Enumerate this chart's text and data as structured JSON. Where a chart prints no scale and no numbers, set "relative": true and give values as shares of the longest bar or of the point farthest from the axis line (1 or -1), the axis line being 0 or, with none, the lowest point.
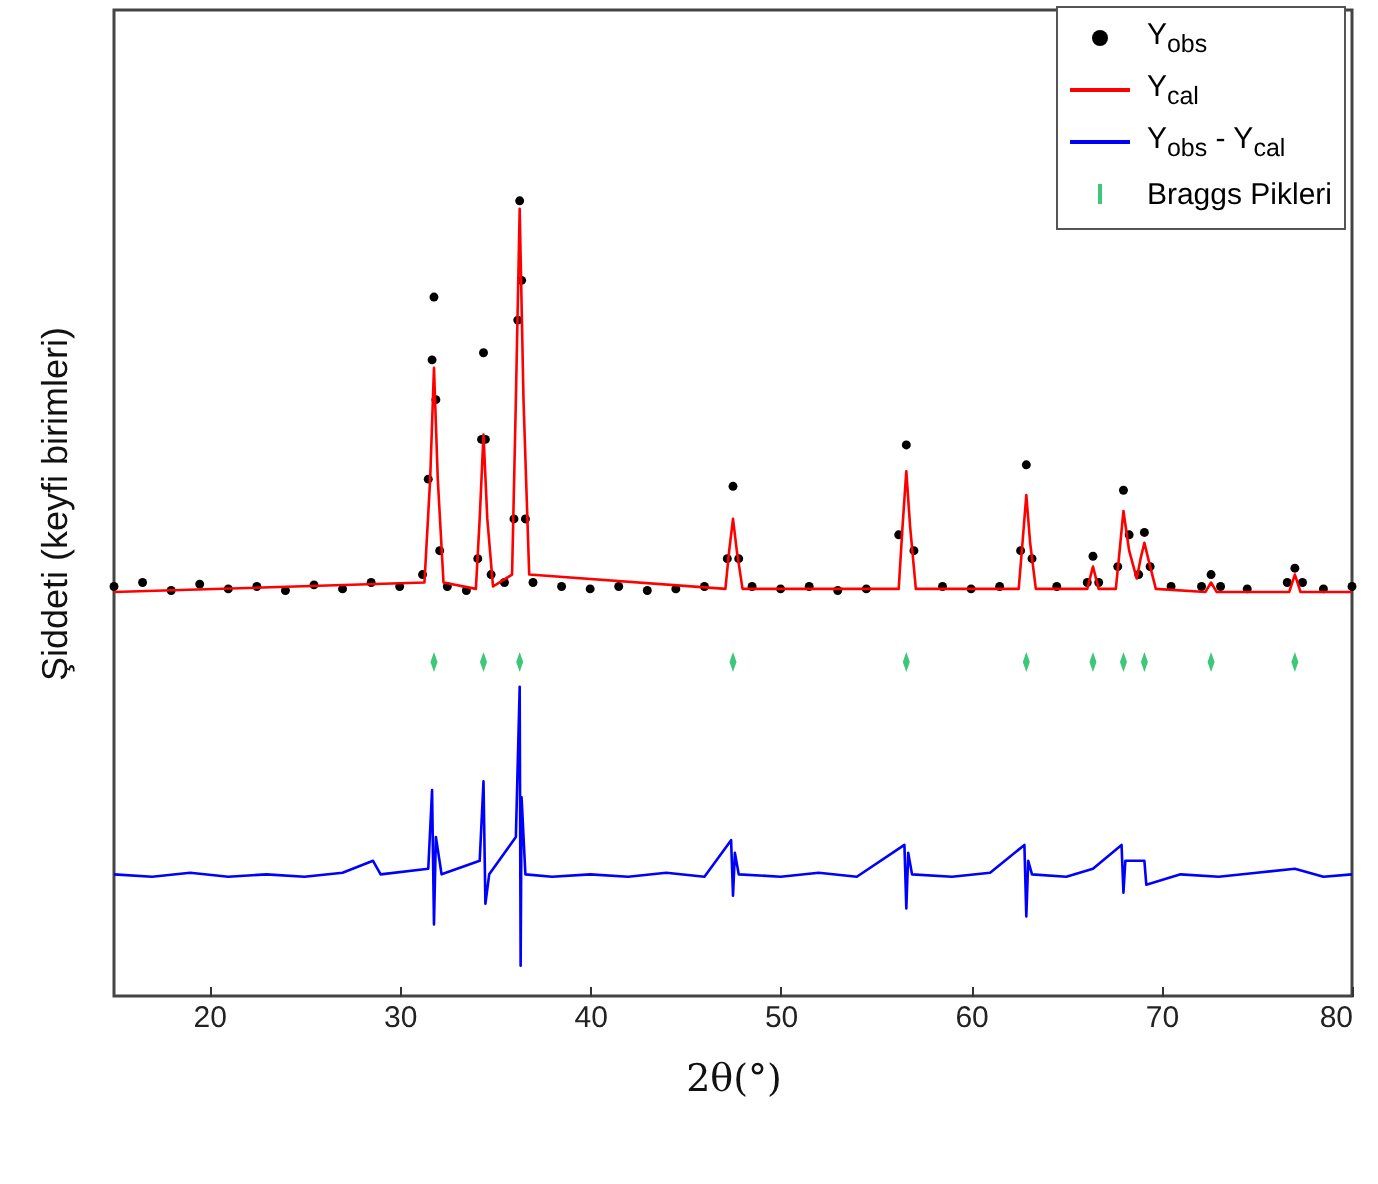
{
  "chart_data": {
    "type": "line",
    "relative": true,
    "xlabel": "2θ(°)",
    "ylabel": "Şiddeti (keyfi birimleri)",
    "xlim": [
      15,
      80
    ],
    "xticks": [
      20,
      30,
      40,
      50,
      60,
      70,
      80
    ],
    "tick_labels": "x",
    "grid": false,
    "legend": "top right",
    "series": [
      {
        "name": "Y$_{obs}$",
        "type": "scatter",
        "marker": "circle",
        "color": "#000000",
        "x": [
          15,
          16.5,
          18,
          19.5,
          21,
          22.5,
          24,
          25.5,
          27,
          28.5,
          30,
          31.2,
          31.5,
          31.7,
          31.8,
          31.9,
          32.1,
          32.5,
          33.5,
          34.1,
          34.3,
          34.4,
          34.5,
          34.8,
          35.5,
          36.0,
          36.2,
          36.3,
          36.4,
          36.6,
          37,
          38.5,
          40,
          41.5,
          43,
          44.5,
          46,
          47.2,
          47.5,
          47.8,
          48.5,
          50,
          51.5,
          53,
          54.5,
          56.2,
          56.6,
          57,
          58.5,
          60,
          61.5,
          62.6,
          62.9,
          63.2,
          64.5,
          66.1,
          66.4,
          66.7,
          67.7,
          68,
          68.3,
          68.8,
          69.1,
          69.4,
          70.5,
          72.1,
          72.6,
          73.1,
          74.5,
          76.6,
          77,
          77.4,
          78.5,
          80
        ],
        "values": [
          0.515,
          0.52,
          0.51,
          0.518,
          0.512,
          0.515,
          0.51,
          0.517,
          0.512,
          0.52,
          0.515,
          0.53,
          0.65,
          0.8,
          0.879,
          0.75,
          0.56,
          0.515,
          0.51,
          0.55,
          0.7,
          0.809,
          0.7,
          0.53,
          0.52,
          0.6,
          0.85,
          1,
          0.9,
          0.6,
          0.52,
          0.515,
          0.512,
          0.515,
          0.51,
          0.512,
          0.515,
          0.55,
          0.641,
          0.55,
          0.515,
          0.512,
          0.515,
          0.51,
          0.512,
          0.58,
          0.693,
          0.56,
          0.515,
          0.512,
          0.515,
          0.56,
          0.668,
          0.55,
          0.515,
          0.52,
          0.553,
          0.52,
          0.54,
          0.636,
          0.58,
          0.53,
          0.583,
          0.54,
          0.515,
          0.515,
          0.53,
          0.515,
          0.512,
          0.52,
          0.538,
          0.52,
          0.512,
          0.515
        ]
      },
      {
        "name": "Y$_{cal}$",
        "color": "#ff0000",
        "x": [
          15,
          31.3,
          31.6,
          31.8,
          32.0,
          32.3,
          34.0,
          34.2,
          34.4,
          34.6,
          34.9,
          35.9,
          36.1,
          36.3,
          36.5,
          36.8,
          47.1,
          47.3,
          47.5,
          47.7,
          48.0,
          56.2,
          56.4,
          56.6,
          56.8,
          57.1,
          62.5,
          62.7,
          62.9,
          63.1,
          63.4,
          66.1,
          66.4,
          66.7,
          67.6,
          67.8,
          68.0,
          68.3,
          68.7,
          68.9,
          69.1,
          69.3,
          69.7,
          72.3,
          72.6,
          72.9,
          76.7,
          77.0,
          77.3,
          80
        ],
        "values": [
          0.508,
          0.52,
          0.65,
          0.79,
          0.65,
          0.52,
          0.512,
          0.6,
          0.706,
          0.6,
          0.515,
          0.53,
          0.75,
          0.99,
          0.75,
          0.53,
          0.512,
          0.56,
          0.6,
          0.56,
          0.512,
          0.512,
          0.59,
          0.66,
          0.59,
          0.512,
          0.512,
          0.57,
          0.63,
          0.57,
          0.512,
          0.512,
          0.54,
          0.512,
          0.512,
          0.56,
          0.61,
          0.56,
          0.525,
          0.55,
          0.57,
          0.55,
          0.512,
          0.508,
          0.52,
          0.508,
          0.508,
          0.53,
          0.508,
          0.508
        ]
      },
      {
        "name": "Y$_{obs}$ - Y$_{cal}$",
        "color": "#0000ff",
        "x": [
          15,
          17,
          19,
          21,
          23,
          25,
          27,
          28.6,
          29,
          31.5,
          31.7,
          31.8,
          31.9,
          32.2,
          34.2,
          34.4,
          34.5,
          34.7,
          36.1,
          36.3,
          36.35,
          36.4,
          36.6,
          38,
          40,
          42,
          44,
          46,
          47.4,
          47.5,
          47.6,
          47.8,
          50,
          52,
          54,
          56.5,
          56.6,
          56.7,
          56.9,
          59,
          61,
          62.8,
          62.9,
          63.0,
          63.2,
          65,
          66.4,
          67.9,
          68.0,
          68.1,
          69.1,
          69.2,
          71,
          73,
          75,
          77,
          78.5,
          80
        ],
        "values": [
          0.153,
          0.15,
          0.155,
          0.15,
          0.153,
          0.15,
          0.155,
          0.17,
          0.153,
          0.16,
          0.259,
          0.09,
          0.2,
          0.153,
          0.17,
          0.27,
          0.116,
          0.153,
          0.2,
          0.389,
          0.038,
          0.25,
          0.153,
          0.15,
          0.153,
          0.15,
          0.155,
          0.15,
          0.196,
          0.126,
          0.18,
          0.153,
          0.15,
          0.155,
          0.15,
          0.19,
          0.11,
          0.18,
          0.153,
          0.15,
          0.155,
          0.19,
          0.1,
          0.17,
          0.153,
          0.15,
          0.16,
          0.19,
          0.13,
          0.17,
          0.17,
          0.14,
          0.153,
          0.15,
          0.155,
          0.16,
          0.15,
          0.153
        ]
      },
      {
        "name": "Braggs Pikleri",
        "type": "scatter",
        "color": "#3cc878",
        "x": [
          31.8,
          34.4,
          36.3,
          47.5,
          56.6,
          62.9,
          66.4,
          68.0,
          69.1,
          72.6,
          77.0
        ],
        "values": [
          0.42,
          0.42,
          0.42,
          0.42,
          0.42,
          0.42,
          0.42,
          0.42,
          0.42,
          0.42,
          0.42
        ]
      }
    ]
  }
}
